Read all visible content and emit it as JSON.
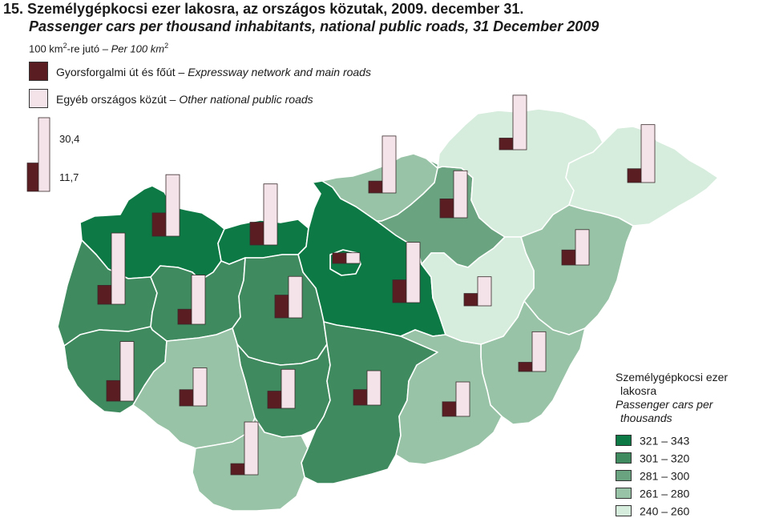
{
  "title": {
    "hu": "15. Személygépkocsi ezer lakosra, az országos közutak, 2009. december 31.",
    "en": "Passenger cars per thousand inhabitants, national public roads, 31 December 2009"
  },
  "bar_legend": {
    "unit_hu": "100 km",
    "unit_sup": "2",
    "unit_mid": "-re jutó – ",
    "unit_en": "Per 100 km",
    "unit_en_sup": "2",
    "expressway_hu": "Gyorsforgalmi út és főút – ",
    "expressway_en": "Expressway network and main roads",
    "other_hu": "Egyéb országos közút – ",
    "other_en": "Other national public roads",
    "scale_other": "30,4",
    "scale_expressway": "11,7"
  },
  "colors": {
    "expressway": "#5a1e22",
    "other": "#f4e4ea",
    "class_321_343": "#0d7a45",
    "class_301_320": "#3f8a5e",
    "class_281_300": "#6aa37f",
    "class_261_280": "#98c3a6",
    "class_240_260": "#d6ecdc"
  },
  "choropleth_legend": {
    "title_hu_1": "Személygépkocsi ezer",
    "title_hu_2": "lakosra",
    "title_en_1": "Passenger cars per",
    "title_en_2": "thousands",
    "classes": [
      {
        "label": "321 – 343",
        "color": "#0d7a45"
      },
      {
        "label": "301 – 320",
        "color": "#3f8a5e"
      },
      {
        "label": "281 – 300",
        "color": "#6aa37f"
      },
      {
        "label": "261 – 280",
        "color": "#98c3a6"
      },
      {
        "label": "240 – 260",
        "color": "#d6ecdc"
      }
    ]
  },
  "map_data": {
    "counties": [
      {
        "id": "gyor-moson-sopron",
        "class": "321 – 343",
        "expressway": 9.6,
        "other": 25.4
      },
      {
        "id": "komarom-esztergom",
        "class": "321 – 343",
        "expressway": 9.4,
        "other": 25.2
      },
      {
        "id": "budapest",
        "class": "321 – 343",
        "expressway": 4.3,
        "other": 4.4
      },
      {
        "id": "pest",
        "class": "321 – 343",
        "expressway": 9.4,
        "other": 24.9
      },
      {
        "id": "vas",
        "class": "301 – 320",
        "expressway": 7.8,
        "other": 29.4
      },
      {
        "id": "veszprem",
        "class": "301 – 320",
        "expressway": 6.2,
        "other": 20.3
      },
      {
        "id": "fejer",
        "class": "301 – 320",
        "expressway": 9.4,
        "other": 17.1
      },
      {
        "id": "zala",
        "class": "301 – 320",
        "expressway": 8.5,
        "other": 24.6
      },
      {
        "id": "tolna",
        "class": "301 – 320",
        "expressway": 7.1,
        "other": 16.1
      },
      {
        "id": "bacs-kiskun",
        "class": "301 – 320",
        "expressway": 6.4,
        "other": 14.2
      },
      {
        "id": "heves",
        "class": "281 – 300",
        "expressway": 7.8,
        "other": 19.4
      },
      {
        "id": "somogy",
        "class": "261 – 280",
        "expressway": 6.7,
        "other": 15.7
      },
      {
        "id": "baranya",
        "class": "261 – 280",
        "expressway": 4.6,
        "other": 21.8
      },
      {
        "id": "nograd",
        "class": "261 – 280",
        "expressway": 4.9,
        "other": 23.5
      },
      {
        "id": "hajdu-bihar",
        "class": "261 – 280",
        "expressway": 6.2,
        "other": 14.6
      },
      {
        "id": "bekes",
        "class": "261 – 280",
        "expressway": 3.8,
        "other": 16.4
      },
      {
        "id": "csongrad",
        "class": "261 – 280",
        "expressway": 6.0,
        "other": 14.2
      },
      {
        "id": "borsod-abauj-zemplen",
        "class": "240 – 260",
        "expressway": 4.8,
        "other": 22.5
      },
      {
        "id": "szabolcs-szatmar-bereg",
        "class": "240 – 260",
        "expressway": 5.7,
        "other": 23.9
      },
      {
        "id": "jasz-nagykun-szolnok",
        "class": "240 – 260",
        "expressway": 5.1,
        "other": 12.0
      }
    ]
  }
}
